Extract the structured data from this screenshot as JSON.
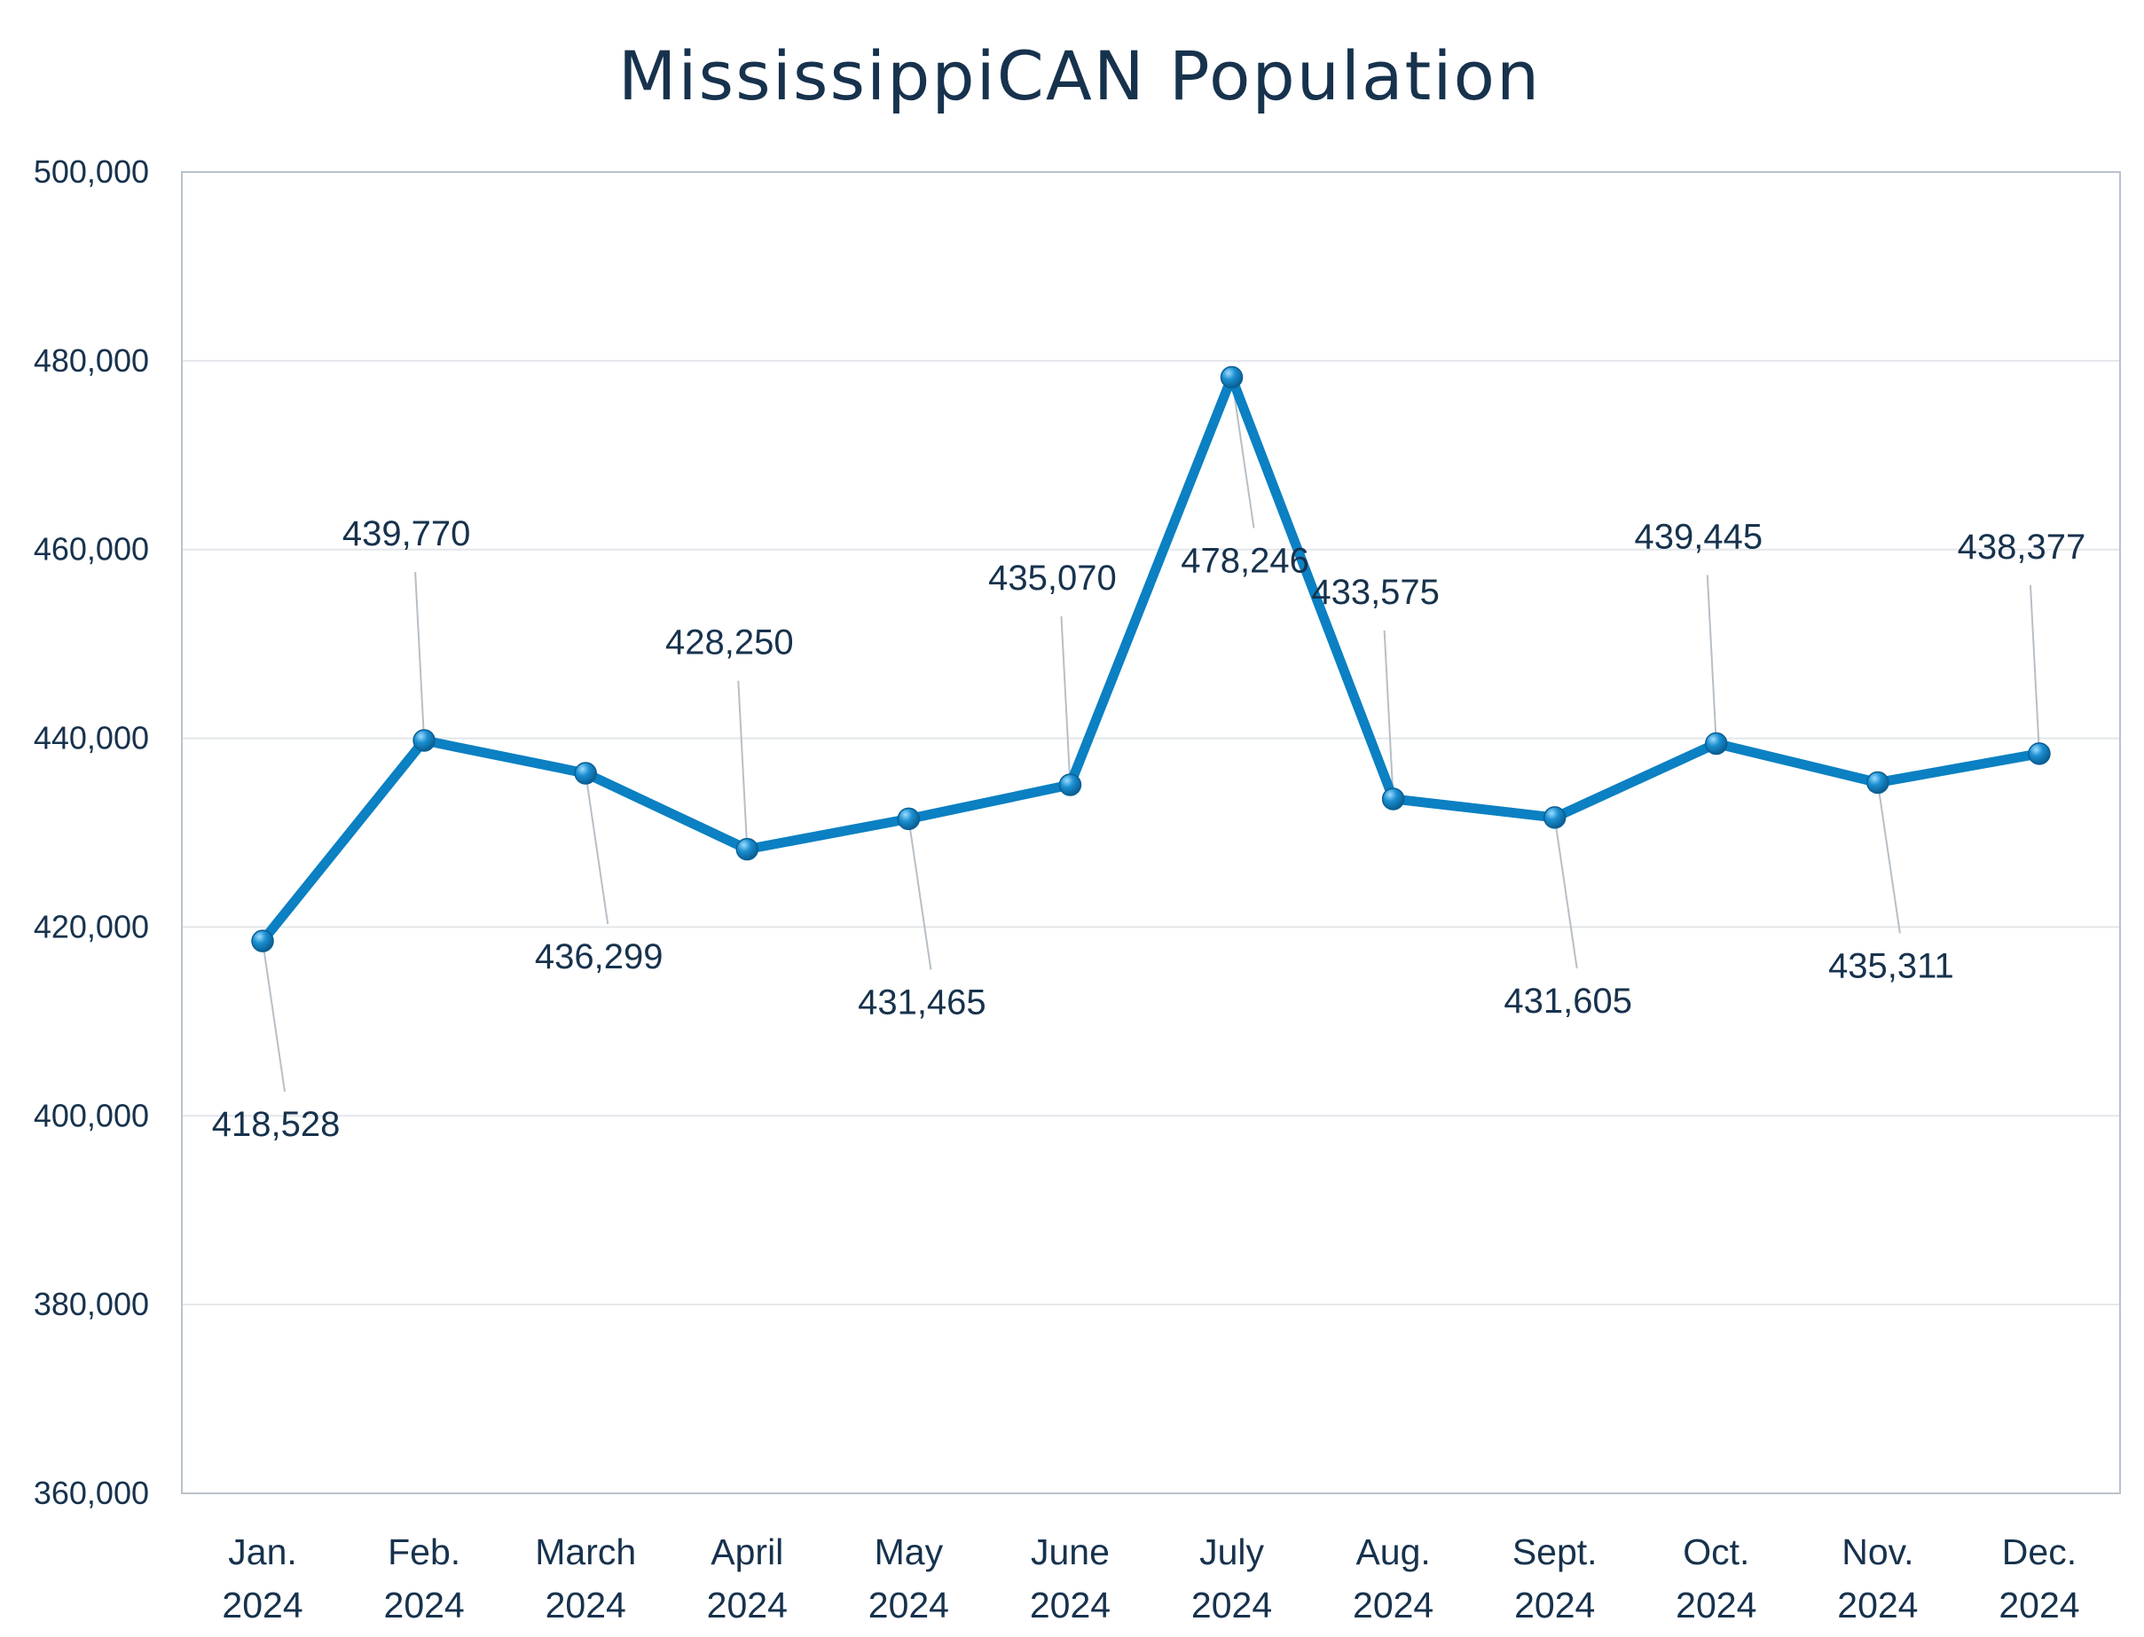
{
  "chart_data": {
    "type": "line",
    "title": "MississippiCAN Population",
    "xlabel": "",
    "ylabel": "",
    "categories": [
      [
        "Jan.",
        "2024"
      ],
      [
        "Feb.",
        "2024"
      ],
      [
        "March",
        "2024"
      ],
      [
        "April",
        "2024"
      ],
      [
        "May",
        "2024"
      ],
      [
        "June",
        "2024"
      ],
      [
        "July",
        "2024"
      ],
      [
        "Aug.",
        "2024"
      ],
      [
        "Sept.",
        "2024"
      ],
      [
        "Oct.",
        "2024"
      ],
      [
        "Nov.",
        "2024"
      ],
      [
        "Dec.",
        "2024"
      ]
    ],
    "values": [
      418528,
      439770,
      436299,
      428250,
      431465,
      435070,
      478246,
      433575,
      431605,
      439445,
      435311,
      438377
    ],
    "data_labels": [
      "418,528",
      "439,770",
      "436,299",
      "428,250",
      "431,465",
      "435,070",
      "478,246",
      "433,575",
      "431,605",
      "439,445",
      "435,311",
      "438,377"
    ],
    "label_side": [
      "below",
      "above",
      "below",
      "above",
      "below",
      "above",
      "below",
      "above",
      "below",
      "above",
      "below",
      "above"
    ],
    "ylim": [
      360000,
      500000
    ],
    "yticks": [
      360000,
      380000,
      400000,
      420000,
      440000,
      460000,
      480000,
      500000
    ],
    "ytick_labels": [
      "360,000",
      "380,000",
      "400,000",
      "420,000",
      "440,000",
      "460,000",
      "480,000",
      "500,000"
    ],
    "grid": true,
    "legend": "none",
    "colors": {
      "line": "#0b80c2",
      "marker": "#1a8fd1",
      "gridline": "#e3e6ea",
      "leader_line": "#b7bfc6",
      "text": "#17324d",
      "plot_border": "#b9c2cc"
    }
  }
}
